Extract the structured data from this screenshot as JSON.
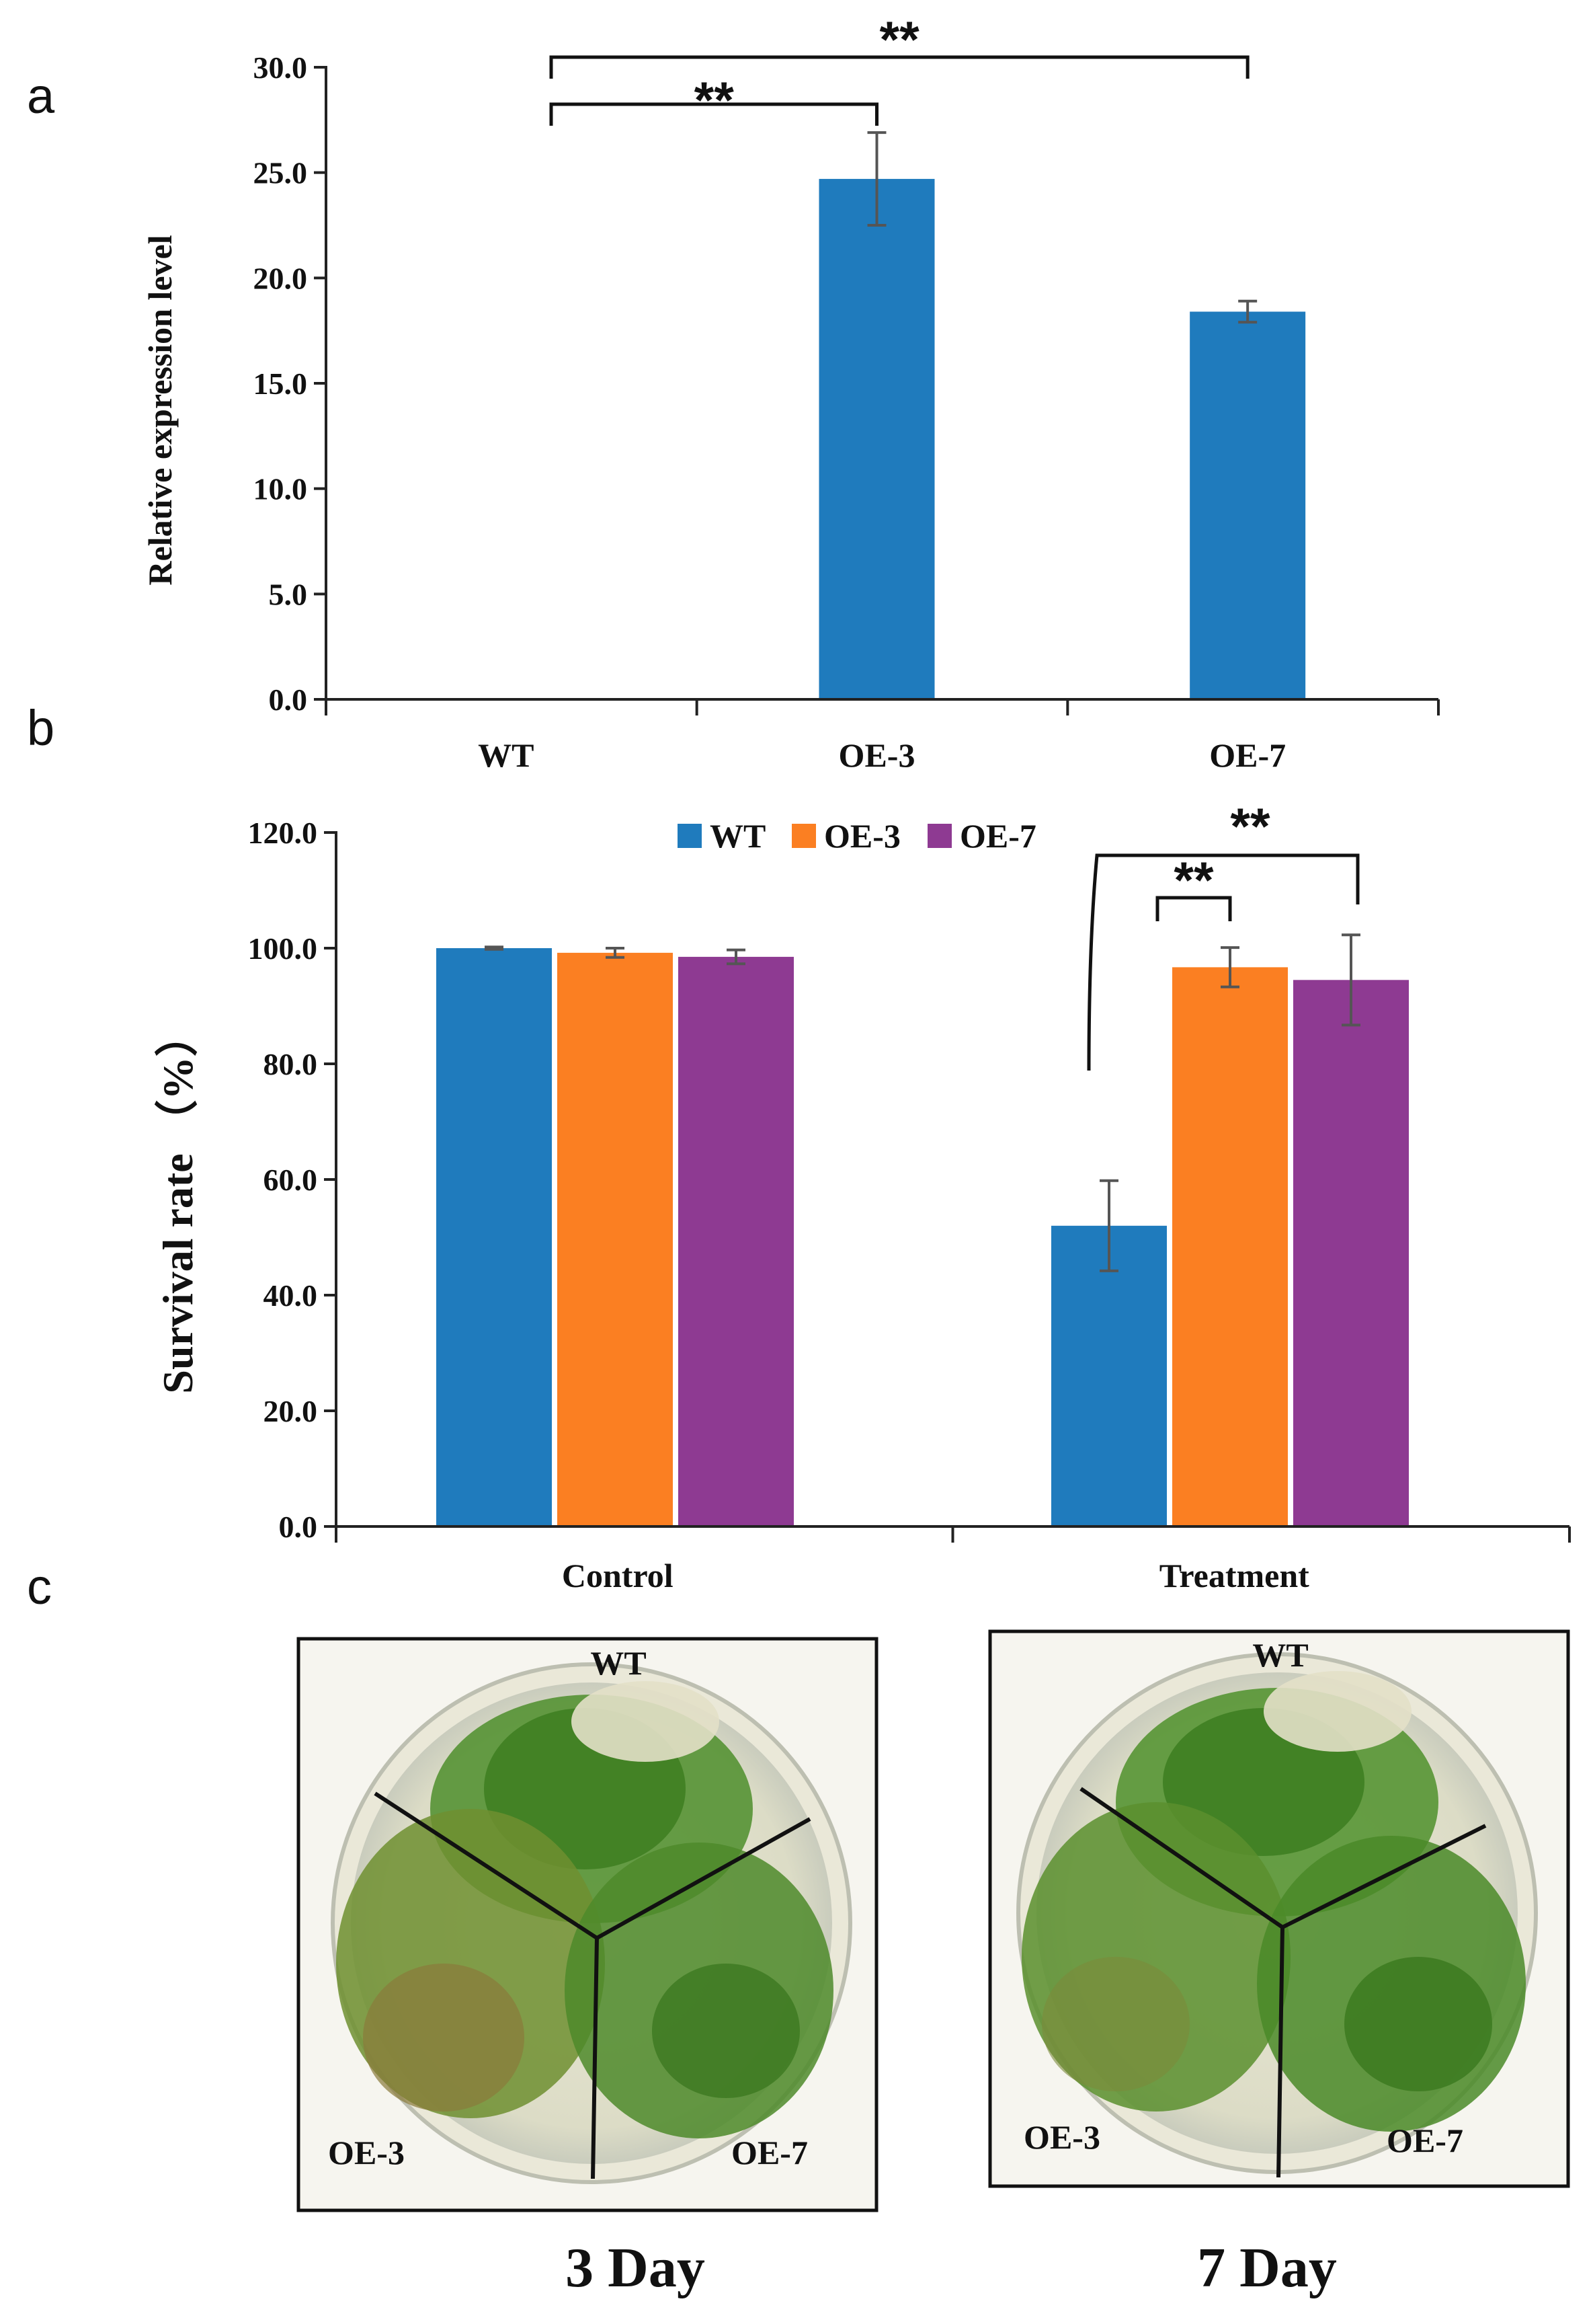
{
  "panels": {
    "a": "a",
    "b": "b",
    "c": "c"
  },
  "colors": {
    "WT": "#1f7bbd",
    "OE-3": "#fb7f22",
    "OE-7": "#8e3a92"
  },
  "chart_data": [
    {
      "id": "a",
      "type": "bar",
      "title": "",
      "xlabel": "",
      "ylabel": "Relative expression level",
      "ylim": [
        0,
        30
      ],
      "yticks": [
        "0.0",
        "5.0",
        "10.0",
        "15.0",
        "20.0",
        "25.0",
        "30.0"
      ],
      "categories": [
        "WT",
        "OE-3",
        "OE-7"
      ],
      "values": [
        0,
        24.7,
        18.4
      ],
      "errors": [
        0,
        2.2,
        0.5
      ],
      "significance": [
        {
          "label": "**",
          "from": "WT",
          "to": "OE-3"
        },
        {
          "label": "**",
          "from": "WT",
          "to": "OE-7"
        }
      ]
    },
    {
      "id": "b",
      "type": "bar",
      "title": "",
      "xlabel": "",
      "ylabel": "Survival rate （%）",
      "ylim": [
        0,
        120
      ],
      "yticks": [
        "0.0",
        "20.0",
        "40.0",
        "60.0",
        "80.0",
        "100.0",
        "120.0"
      ],
      "categories": [
        "Control",
        "Treatment"
      ],
      "legend": [
        "WT",
        "OE-3",
        "OE-7"
      ],
      "legend_position": "top",
      "series": [
        {
          "name": "WT",
          "values": [
            100.0,
            52.0
          ],
          "errors": [
            0.2,
            7.8
          ]
        },
        {
          "name": "OE-3",
          "values": [
            99.2,
            96.7
          ],
          "errors": [
            0.8,
            3.4
          ]
        },
        {
          "name": "OE-7",
          "values": [
            98.5,
            94.5
          ],
          "errors": [
            1.2,
            7.8
          ]
        }
      ],
      "significance": [
        {
          "label": "**",
          "category": "Treatment",
          "from": "WT",
          "to": "OE-3"
        },
        {
          "label": "**",
          "category": "Treatment",
          "from": "WT",
          "to": "OE-7"
        }
      ]
    }
  ],
  "photos": [
    {
      "day_label": "3 Day",
      "labels": {
        "top": "WT",
        "left": "OE-3",
        "right": "OE-7"
      }
    },
    {
      "day_label": "7 Day",
      "labels": {
        "top": "WT",
        "left": "OE-3",
        "right": "OE-7"
      }
    }
  ]
}
